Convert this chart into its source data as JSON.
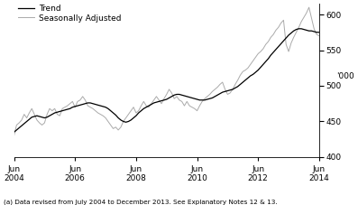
{
  "ylabel_right": "'000",
  "ylim": [
    400,
    615
  ],
  "yticks": [
    400,
    450,
    500,
    550,
    600
  ],
  "footnote": "(a) Data revised from July 2004 to December 2013. See Explanatory Notes 12 & 13.",
  "legend_trend": "Trend",
  "legend_sa": "Seasonally Adjusted",
  "trend_color": "#000000",
  "sa_color": "#aaaaaa",
  "background_color": "#ffffff",
  "trend_linewidth": 0.9,
  "sa_linewidth": 0.7,
  "n_months": 121,
  "xtick_positions": [
    0,
    24,
    48,
    72,
    96,
    120
  ],
  "xtick_labels_line1": [
    "Jun",
    "Jun",
    "Jun",
    "Jun",
    "Jun",
    "Jun"
  ],
  "xtick_labels_line2": [
    "2004",
    "2006",
    "2008",
    "2010",
    "2012",
    "2014"
  ],
  "trend_data": [
    435,
    438,
    441,
    444,
    447,
    450,
    453,
    456,
    457,
    458,
    457,
    456,
    455,
    456,
    458,
    460,
    462,
    463,
    464,
    465,
    466,
    467,
    468,
    470,
    471,
    472,
    473,
    474,
    475,
    476,
    476,
    475,
    474,
    473,
    472,
    471,
    470,
    468,
    465,
    462,
    459,
    455,
    452,
    450,
    449,
    450,
    452,
    455,
    458,
    462,
    465,
    468,
    470,
    472,
    474,
    476,
    477,
    478,
    479,
    480,
    481,
    483,
    485,
    487,
    488,
    488,
    487,
    486,
    485,
    484,
    483,
    482,
    481,
    480,
    480,
    480,
    481,
    482,
    483,
    485,
    487,
    489,
    491,
    492,
    493,
    494,
    495,
    497,
    499,
    502,
    505,
    508,
    511,
    514,
    516,
    519,
    522,
    526,
    530,
    534,
    538,
    543,
    547,
    551,
    555,
    559,
    563,
    567,
    571,
    574,
    577,
    579,
    580,
    580,
    579,
    578,
    577,
    577,
    576,
    575,
    575
  ],
  "sa_noise_seed": 42,
  "sa_data": [
    430,
    445,
    448,
    452,
    460,
    455,
    462,
    468,
    460,
    452,
    448,
    445,
    448,
    460,
    468,
    465,
    468,
    460,
    458,
    468,
    470,
    472,
    475,
    478,
    470,
    478,
    480,
    485,
    480,
    472,
    470,
    468,
    465,
    462,
    460,
    458,
    455,
    450,
    445,
    440,
    442,
    438,
    442,
    450,
    455,
    460,
    465,
    470,
    462,
    465,
    472,
    478,
    472,
    470,
    475,
    480,
    485,
    480,
    475,
    482,
    488,
    495,
    490,
    482,
    485,
    480,
    478,
    472,
    478,
    472,
    470,
    468,
    465,
    472,
    478,
    482,
    485,
    488,
    492,
    495,
    498,
    502,
    505,
    495,
    488,
    490,
    495,
    502,
    508,
    515,
    520,
    522,
    525,
    530,
    535,
    540,
    545,
    548,
    552,
    558,
    562,
    568,
    572,
    578,
    582,
    588,
    592,
    558,
    548,
    560,
    568,
    575,
    582,
    590,
    596,
    602,
    610,
    595,
    580,
    572,
    570
  ]
}
